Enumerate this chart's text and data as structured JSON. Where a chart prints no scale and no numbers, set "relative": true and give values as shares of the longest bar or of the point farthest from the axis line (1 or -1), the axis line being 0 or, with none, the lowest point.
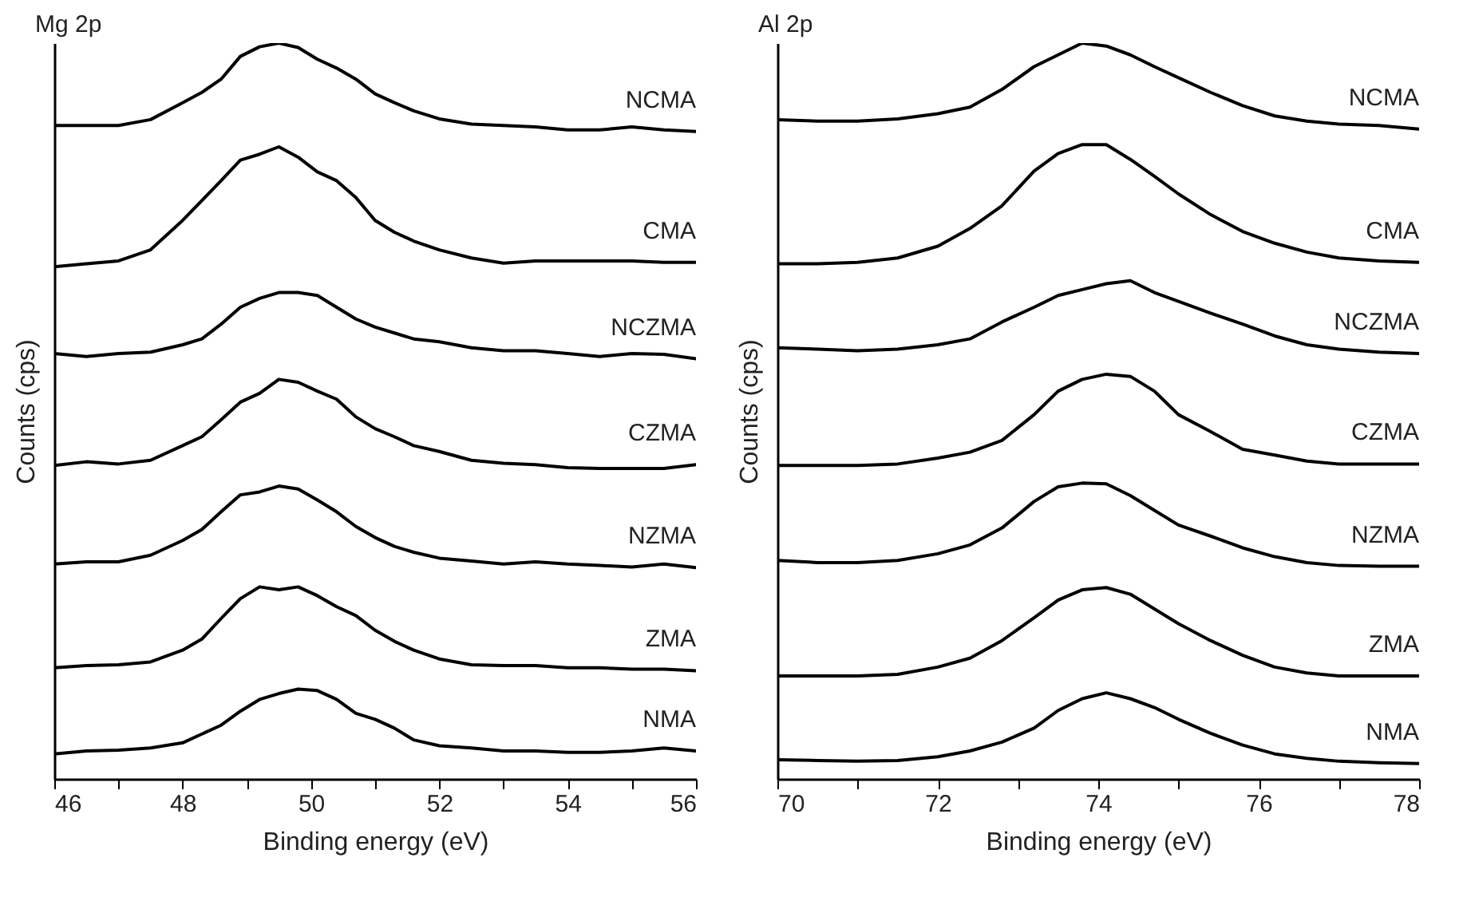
{
  "chart_data": [
    {
      "type": "line",
      "title": "Mg 2p",
      "xlabel": "Binding energy (eV)",
      "ylabel": "Counts (cps)",
      "relative": true,
      "tick_labels": "x",
      "x": [
        46,
        46.5,
        47,
        47.5,
        48,
        48.3,
        48.6,
        48.9,
        49.2,
        49.5,
        49.8,
        50.1,
        50.4,
        50.7,
        51,
        51.3,
        51.6,
        52,
        52.5,
        53,
        53.5,
        54,
        54.5,
        55,
        55.5,
        56
      ],
      "xlim": [
        46,
        56
      ],
      "xticks": [
        46,
        {
          "value": 47,
          "label": null
        },
        48,
        {
          "value": 49,
          "label": null
        },
        50,
        {
          "value": 51,
          "label": null
        },
        52,
        {
          "value": 53,
          "label": null
        },
        54,
        {
          "value": 55,
          "label": null
        },
        56
      ],
      "series": [
        {
          "name": "NCMA",
          "color": "#000000",
          "values": [
            0.888,
            0.888,
            0.888,
            0.896,
            0.919,
            0.933,
            0.951,
            0.982,
            0.995,
            1.0,
            0.994,
            0.978,
            0.966,
            0.951,
            0.931,
            0.919,
            0.908,
            0.897,
            0.89,
            0.888,
            0.886,
            0.882,
            0.882,
            0.886,
            0.882,
            0.88
          ]
        },
        {
          "name": "CMA",
          "color": "#000000",
          "values": [
            0.696,
            0.7,
            0.704,
            0.719,
            0.759,
            0.786,
            0.813,
            0.841,
            0.849,
            0.859,
            0.845,
            0.825,
            0.813,
            0.79,
            0.759,
            0.743,
            0.731,
            0.719,
            0.708,
            0.701,
            0.704,
            0.704,
            0.704,
            0.704,
            0.702,
            0.702
          ]
        },
        {
          "name": "NCZMA",
          "color": "#000000",
          "values": [
            0.578,
            0.574,
            0.578,
            0.58,
            0.59,
            0.598,
            0.618,
            0.641,
            0.653,
            0.661,
            0.661,
            0.657,
            0.641,
            0.625,
            0.614,
            0.606,
            0.598,
            0.594,
            0.586,
            0.582,
            0.582,
            0.578,
            0.574,
            0.578,
            0.577,
            0.571
          ]
        },
        {
          "name": "CZMA",
          "color": "#000000",
          "values": [
            0.426,
            0.431,
            0.428,
            0.433,
            0.453,
            0.465,
            0.488,
            0.512,
            0.524,
            0.543,
            0.539,
            0.527,
            0.516,
            0.492,
            0.476,
            0.465,
            0.453,
            0.445,
            0.433,
            0.429,
            0.427,
            0.423,
            0.422,
            0.422,
            0.422,
            0.427
          ]
        },
        {
          "name": "NZMA",
          "color": "#000000",
          "values": [
            0.292,
            0.295,
            0.295,
            0.304,
            0.324,
            0.339,
            0.363,
            0.386,
            0.39,
            0.398,
            0.394,
            0.379,
            0.363,
            0.343,
            0.328,
            0.316,
            0.308,
            0.3,
            0.296,
            0.292,
            0.295,
            0.292,
            0.29,
            0.288,
            0.292,
            0.287
          ]
        },
        {
          "name": "ZMA",
          "color": "#000000",
          "values": [
            0.151,
            0.154,
            0.155,
            0.159,
            0.175,
            0.19,
            0.218,
            0.245,
            0.261,
            0.257,
            0.261,
            0.249,
            0.234,
            0.222,
            0.202,
            0.187,
            0.175,
            0.163,
            0.155,
            0.154,
            0.154,
            0.151,
            0.151,
            0.149,
            0.149,
            0.147
          ]
        },
        {
          "name": "NMA",
          "color": "#000000",
          "values": [
            0.034,
            0.038,
            0.039,
            0.042,
            0.049,
            0.061,
            0.073,
            0.092,
            0.108,
            0.116,
            0.122,
            0.12,
            0.108,
            0.089,
            0.081,
            0.069,
            0.053,
            0.045,
            0.042,
            0.038,
            0.038,
            0.036,
            0.036,
            0.038,
            0.042,
            0.038
          ]
        }
      ]
    },
    {
      "type": "line",
      "title": "Al 2p",
      "xlabel": "Binding energy (eV)",
      "ylabel": "Counts (cps)",
      "relative": true,
      "tick_labels": "x",
      "x": [
        70,
        70.5,
        71,
        71.5,
        72,
        72.4,
        72.8,
        73.2,
        73.5,
        73.8,
        74.1,
        74.4,
        74.7,
        75,
        75.4,
        75.8,
        76.2,
        76.6,
        77,
        77.5,
        78
      ],
      "xlim": [
        70,
        78
      ],
      "xticks": [
        70,
        {
          "value": 71,
          "label": null
        },
        72,
        {
          "value": 73,
          "label": null
        },
        74,
        {
          "value": 75,
          "label": null
        },
        76,
        {
          "value": 77,
          "label": null
        },
        78
      ],
      "series": [
        {
          "name": "NCMA",
          "color": "#000000",
          "values": [
            0.896,
            0.894,
            0.894,
            0.897,
            0.904,
            0.913,
            0.937,
            0.968,
            0.984,
            1.0,
            0.996,
            0.984,
            0.968,
            0.953,
            0.933,
            0.915,
            0.901,
            0.894,
            0.89,
            0.888,
            0.883
          ]
        },
        {
          "name": "CMA",
          "color": "#000000",
          "values": [
            0.7,
            0.7,
            0.702,
            0.708,
            0.724,
            0.748,
            0.779,
            0.826,
            0.85,
            0.862,
            0.862,
            0.842,
            0.819,
            0.795,
            0.767,
            0.744,
            0.728,
            0.716,
            0.708,
            0.704,
            0.702
          ]
        },
        {
          "name": "NCZMA",
          "color": "#000000",
          "values": [
            0.586,
            0.584,
            0.582,
            0.584,
            0.59,
            0.598,
            0.621,
            0.641,
            0.657,
            0.665,
            0.673,
            0.677,
            0.661,
            0.649,
            0.633,
            0.618,
            0.602,
            0.59,
            0.584,
            0.58,
            0.578
          ]
        },
        {
          "name": "CZMA",
          "color": "#000000",
          "values": [
            0.426,
            0.426,
            0.426,
            0.428,
            0.436,
            0.444,
            0.46,
            0.495,
            0.527,
            0.543,
            0.55,
            0.547,
            0.527,
            0.495,
            0.472,
            0.448,
            0.44,
            0.432,
            0.428,
            0.428,
            0.428
          ]
        },
        {
          "name": "NZMA",
          "color": "#000000",
          "values": [
            0.297,
            0.294,
            0.294,
            0.297,
            0.306,
            0.318,
            0.341,
            0.377,
            0.397,
            0.402,
            0.401,
            0.385,
            0.365,
            0.345,
            0.33,
            0.314,
            0.302,
            0.294,
            0.29,
            0.289,
            0.289
          ]
        },
        {
          "name": "ZMA",
          "color": "#000000",
          "values": [
            0.14,
            0.14,
            0.14,
            0.142,
            0.152,
            0.164,
            0.188,
            0.219,
            0.243,
            0.257,
            0.26,
            0.251,
            0.231,
            0.211,
            0.188,
            0.168,
            0.152,
            0.144,
            0.14,
            0.14,
            0.14
          ]
        },
        {
          "name": "NMA",
          "color": "#000000",
          "values": [
            0.026,
            0.025,
            0.024,
            0.025,
            0.03,
            0.038,
            0.05,
            0.069,
            0.093,
            0.109,
            0.117,
            0.109,
            0.097,
            0.081,
            0.062,
            0.046,
            0.034,
            0.028,
            0.024,
            0.022,
            0.021
          ]
        }
      ]
    }
  ]
}
